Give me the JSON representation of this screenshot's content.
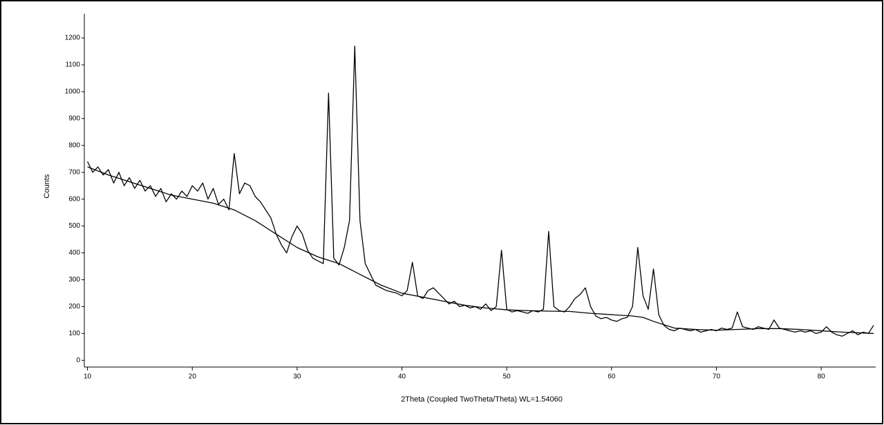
{
  "chart_data": {
    "type": "line",
    "x_label": "2Theta (Coupled TwoTheta/Theta) WL=1.54060",
    "y_label": "Counts",
    "xlim": [
      9.7,
      85.2
    ],
    "ylim": [
      -25,
      1290
    ],
    "xticks": [
      10,
      20,
      30,
      40,
      50,
      60,
      70,
      80
    ],
    "yticks": [
      0,
      100,
      200,
      300,
      400,
      500,
      600,
      700,
      800,
      900,
      1000,
      1100,
      1200
    ],
    "series": [
      {
        "color": "#000000",
        "x": [
          10,
          10.5,
          11,
          11.5,
          12,
          12.5,
          13,
          13.5,
          14,
          14.5,
          15,
          15.5,
          16,
          16.5,
          17,
          17.5,
          18,
          18.5,
          19,
          19.5,
          20,
          20.5,
          21,
          21.5,
          22,
          22.5,
          23,
          23.5,
          24,
          24.5,
          25,
          25.5,
          26,
          26.5,
          27,
          27.5,
          28,
          28.5,
          29,
          29.5,
          30,
          30.5,
          31,
          31.5,
          32,
          32.5,
          33,
          33.5,
          34,
          34.5,
          35,
          35.5,
          36,
          36.5,
          37,
          37.5,
          38,
          38.5,
          39,
          39.5,
          40,
          40.5,
          41,
          41.5,
          42,
          42.5,
          43,
          43.5,
          44,
          44.5,
          45,
          45.5,
          46,
          46.5,
          47,
          47.5,
          48,
          48.5,
          49,
          49.5,
          50,
          50.5,
          51,
          51.5,
          52,
          52.5,
          53,
          53.5,
          54,
          54.5,
          55,
          55.5,
          56,
          56.5,
          57,
          57.5,
          58,
          58.5,
          59,
          59.5,
          60,
          60.5,
          61,
          61.5,
          62,
          62.5,
          63,
          63.5,
          64,
          64.5,
          65,
          65.5,
          66,
          66.5,
          67,
          67.5,
          68,
          68.5,
          69,
          69.5,
          70,
          70.5,
          71,
          71.5,
          72,
          72.5,
          73,
          73.5,
          74,
          74.5,
          75,
          75.5,
          76,
          76.5,
          77,
          77.5,
          78,
          78.5,
          79,
          79.5,
          80,
          80.5,
          81,
          81.5,
          82,
          82.5,
          83,
          83.5,
          84,
          84.5,
          85
        ],
        "values": [
          740,
          700,
          720,
          690,
          710,
          660,
          700,
          650,
          680,
          640,
          670,
          630,
          650,
          610,
          640,
          590,
          620,
          600,
          630,
          610,
          650,
          630,
          660,
          600,
          640,
          580,
          600,
          560,
          770,
          620,
          660,
          650,
          610,
          590,
          560,
          530,
          470,
          430,
          400,
          460,
          500,
          470,
          410,
          380,
          370,
          360,
          995,
          380,
          355,
          420,
          520,
          1170,
          520,
          360,
          320,
          280,
          270,
          260,
          255,
          250,
          240,
          260,
          365,
          240,
          230,
          260,
          270,
          250,
          230,
          210,
          220,
          200,
          205,
          195,
          200,
          190,
          210,
          185,
          200,
          410,
          190,
          180,
          185,
          180,
          175,
          185,
          180,
          190,
          480,
          200,
          185,
          180,
          200,
          230,
          245,
          270,
          200,
          165,
          155,
          160,
          150,
          145,
          155,
          160,
          200,
          420,
          240,
          190,
          340,
          170,
          130,
          115,
          110,
          120,
          115,
          110,
          115,
          105,
          110,
          115,
          110,
          120,
          115,
          120,
          180,
          125,
          120,
          115,
          125,
          120,
          115,
          150,
          120,
          115,
          110,
          105,
          110,
          105,
          110,
          100,
          105,
          125,
          105,
          95,
          90,
          100,
          110,
          95,
          105,
          100,
          130
        ]
      },
      {
        "color": "#000000",
        "x": [
          10,
          12,
          14,
          16,
          18,
          20,
          22,
          24,
          26,
          28,
          30,
          32,
          34,
          36,
          38,
          40,
          42,
          44,
          46,
          48,
          50,
          52,
          54,
          56,
          58,
          60,
          62,
          63,
          64,
          66,
          68,
          70,
          72,
          74,
          76,
          78,
          80,
          82,
          85
        ],
        "values": [
          720,
          690,
          665,
          640,
          615,
          600,
          585,
          560,
          520,
          470,
          420,
          385,
          360,
          320,
          280,
          250,
          235,
          220,
          205,
          195,
          188,
          185,
          183,
          182,
          175,
          170,
          165,
          160,
          145,
          120,
          115,
          112,
          115,
          118,
          118,
          115,
          110,
          105,
          100
        ]
      }
    ]
  }
}
